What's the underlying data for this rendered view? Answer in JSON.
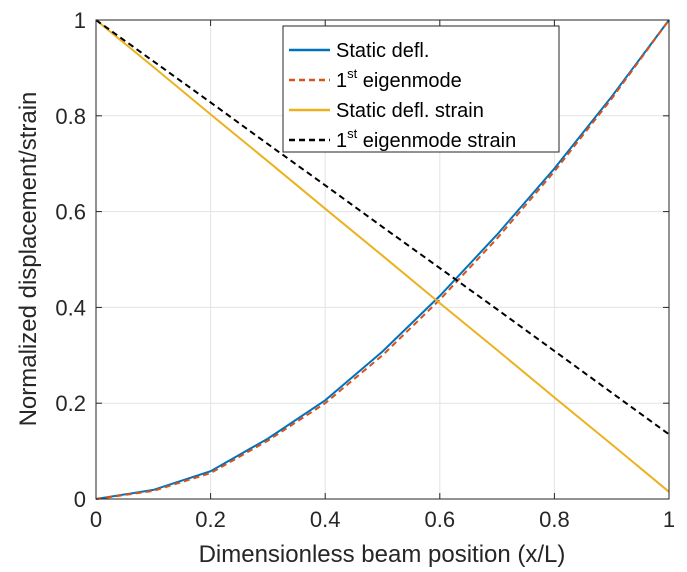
{
  "chart_data": {
    "type": "line",
    "xlabel": "Dimensionless beam position (x/L)",
    "ylabel": "Normalized displacement/strain",
    "xlim": [
      0,
      1
    ],
    "ylim": [
      0,
      1
    ],
    "xticks": [
      0,
      0.2,
      0.4,
      0.6,
      0.8,
      1
    ],
    "xtick_labels": [
      "0",
      "0.2",
      "0.4",
      "0.6",
      "0.8",
      "1"
    ],
    "yticks": [
      0,
      0.2,
      0.4,
      0.6,
      0.8,
      1
    ],
    "ytick_labels": [
      "0",
      "0.2",
      "0.4",
      "0.6",
      "0.8",
      "1"
    ],
    "grid": true,
    "legend_position": "top-right",
    "x": [
      0,
      0.1,
      0.2,
      0.3,
      0.4,
      0.5,
      0.6,
      0.7,
      0.8,
      0.9,
      1.0
    ],
    "series": [
      {
        "name": "Static defl.",
        "name_parts": {
          "base": "Static defl.",
          "sup": "",
          "rest": ""
        },
        "color": "#0072BD",
        "dash": "solid",
        "values": [
          0.0,
          0.019,
          0.058,
          0.126,
          0.206,
          0.308,
          0.424,
          0.552,
          0.69,
          0.84,
          1.0
        ]
      },
      {
        "name": "1st eigenmode",
        "name_parts": {
          "base": "1",
          "sup": "st",
          "rest": " eigenmode"
        },
        "color": "#D95319",
        "dash": "dashed",
        "values": [
          0.0,
          0.017,
          0.054,
          0.122,
          0.2,
          0.3,
          0.416,
          0.544,
          0.684,
          0.836,
          1.0
        ]
      },
      {
        "name": "Static defl. strain",
        "name_parts": {
          "base": "Static defl. strain",
          "sup": "",
          "rest": ""
        },
        "color": "#EDB120",
        "dash": "solid",
        "values": [
          1.0,
          0.902,
          0.803,
          0.705,
          0.606,
          0.508,
          0.409,
          0.311,
          0.212,
          0.114,
          0.015
        ]
      },
      {
        "name": "1st eigenmode strain",
        "name_parts": {
          "base": "1",
          "sup": "st",
          "rest": " eigenmode strain"
        },
        "color": "#000000",
        "dash": "dashed",
        "values": [
          1.0,
          0.914,
          0.828,
          0.741,
          0.655,
          0.568,
          0.482,
          0.396,
          0.309,
          0.222,
          0.135
        ]
      }
    ]
  }
}
